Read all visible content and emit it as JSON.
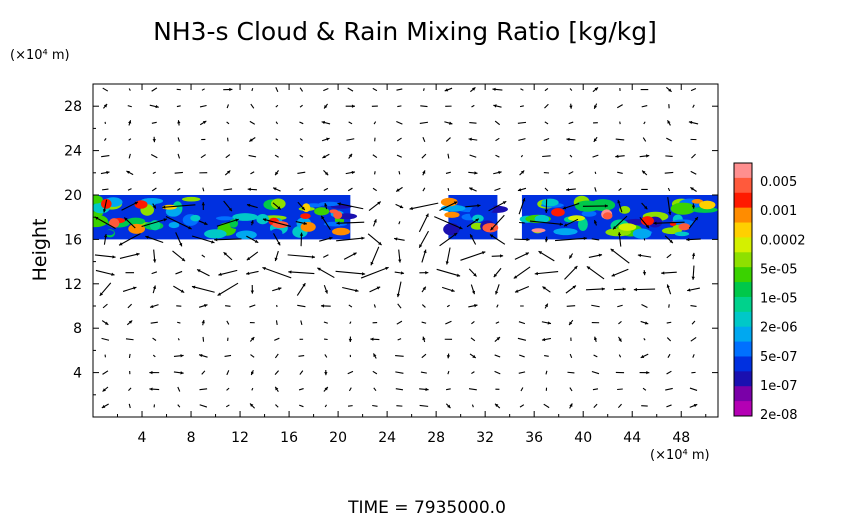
{
  "chart_data": {
    "type": "heatmap",
    "title": "NH3-s Cloud & Rain Mixing Ratio [kg/kg]",
    "ylabel": "Height",
    "x_unit_label": "(×10⁴ m)",
    "y_unit_label": "(×10⁴ m)",
    "xlim": [
      0,
      51
    ],
    "ylim": [
      0,
      30
    ],
    "x_ticks": [
      4,
      8,
      12,
      16,
      20,
      24,
      28,
      32,
      36,
      40,
      44,
      48
    ],
    "y_ticks": [
      4,
      8,
      12,
      16,
      20,
      24,
      28
    ],
    "x_tick_labels": [
      "4",
      "8",
      "12",
      "16",
      "20",
      "24",
      "28",
      "32",
      "36",
      "40",
      "44",
      "48"
    ],
    "y_tick_labels": [
      "4",
      "8",
      "12",
      "16",
      "20",
      "24",
      "28"
    ],
    "colorbar": {
      "labels": [
        "0.005",
        "0.001",
        "0.0002",
        "5e-05",
        "1e-05",
        "2e-06",
        "5e-07",
        "1e-07",
        "2e-08"
      ],
      "colors": [
        "#ff8f8f",
        "#ff5a3c",
        "#ff1a00",
        "#ff8c00",
        "#ffd000",
        "#d4f000",
        "#8ee000",
        "#3ad200",
        "#00c84a",
        "#00d28c",
        "#00c8c8",
        "#00a8f0",
        "#0070ff",
        "#0030e0",
        "#1a10b0",
        "#7a00a8",
        "#b400b4"
      ]
    },
    "cloud_layer": {
      "bottom": 16,
      "top": 20,
      "segments": [
        [
          0,
          21
        ],
        [
          29,
          33
        ],
        [
          35,
          51
        ]
      ]
    },
    "wind_vectors": "arrow field overlay",
    "footer": "TIME  =  7935000.0"
  }
}
